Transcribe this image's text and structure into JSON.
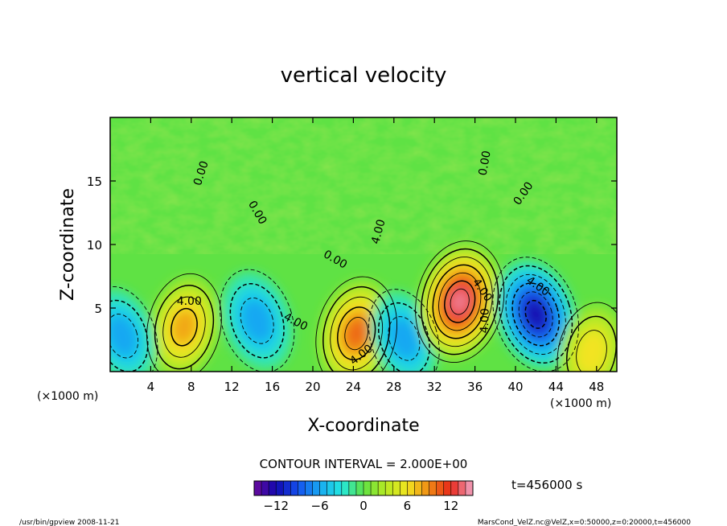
{
  "chart_data": {
    "type": "heatmap",
    "title": "vertical velocity",
    "xlabel": "X-coordinate",
    "ylabel": "Z-coordinate",
    "x_unit": "(×1000 m)",
    "y_unit": "(×1000 m)",
    "xlim": [
      0,
      50
    ],
    "ylim": [
      0,
      20
    ],
    "x_ticks": [
      4,
      8,
      12,
      16,
      20,
      24,
      28,
      32,
      36,
      40,
      44,
      48
    ],
    "y_ticks": [
      5,
      10,
      15
    ],
    "contour_interval_text": "CONTOUR INTERVAL = 2.000E+00",
    "contour_interval": 2.0,
    "contour_labels": [
      {
        "text": "4.00",
        "x": 7.8,
        "y": 5.5,
        "rot": 0
      },
      {
        "text": "4.00",
        "x": 18.3,
        "y": 3.9,
        "rot": 28
      },
      {
        "text": "4.00",
        "x": 24.8,
        "y": 1.3,
        "rot": -38
      },
      {
        "text": "0.00",
        "x": 9.0,
        "y": 15.6,
        "rot": -72
      },
      {
        "text": "0.00",
        "x": 14.5,
        "y": 12.5,
        "rot": 60
      },
      {
        "text": "0.00",
        "x": 22.2,
        "y": 8.8,
        "rot": 30
      },
      {
        "text": "4.00",
        "x": 26.5,
        "y": 11.0,
        "rot": -75
      },
      {
        "text": "0.00",
        "x": 37.0,
        "y": 16.4,
        "rot": -80
      },
      {
        "text": "4.00",
        "x": 36.7,
        "y": 6.4,
        "rot": 55
      },
      {
        "text": "4.00",
        "x": 37.0,
        "y": 4.0,
        "rot": -88
      },
      {
        "text": "4.00",
        "x": 42.2,
        "y": 6.7,
        "rot": 35
      },
      {
        "text": "0.00",
        "x": 40.8,
        "y": 14.0,
        "rot": -55
      }
    ],
    "features": [
      {
        "name": "updraft",
        "x": 7.3,
        "z": 3.5,
        "w": 8.5
      },
      {
        "name": "downdraft",
        "x": 1.2,
        "z": 2.8,
        "w": -6
      },
      {
        "name": "downdraft",
        "x": 14.5,
        "z": 4.0,
        "w": -7.5
      },
      {
        "name": "updraft",
        "x": 24.3,
        "z": 3.0,
        "w": 11
      },
      {
        "name": "downdraft",
        "x": 29.0,
        "z": 2.6,
        "w": -6
      },
      {
        "name": "updraft",
        "x": 34.5,
        "z": 5.5,
        "w": 14
      },
      {
        "name": "downdraft",
        "x": 42.0,
        "z": 4.5,
        "w": -12
      },
      {
        "name": "updraft",
        "x": 47.5,
        "z": 1.5,
        "w": 6
      }
    ],
    "colorbar": {
      "range": [
        -15,
        15
      ],
      "tick_values": [
        -12,
        -6,
        0,
        6,
        12
      ],
      "tick_labels": [
        "−12",
        "−6",
        "0",
        "6",
        "12"
      ],
      "n_colors": 30
    },
    "time_label": "t=456000 s",
    "footer_left": "/usr/bin/gpview  2008-11-21",
    "footer_right": "MarsCond_VelZ.nc@VelZ,x=0:50000,z=0:20000,t=456000"
  }
}
